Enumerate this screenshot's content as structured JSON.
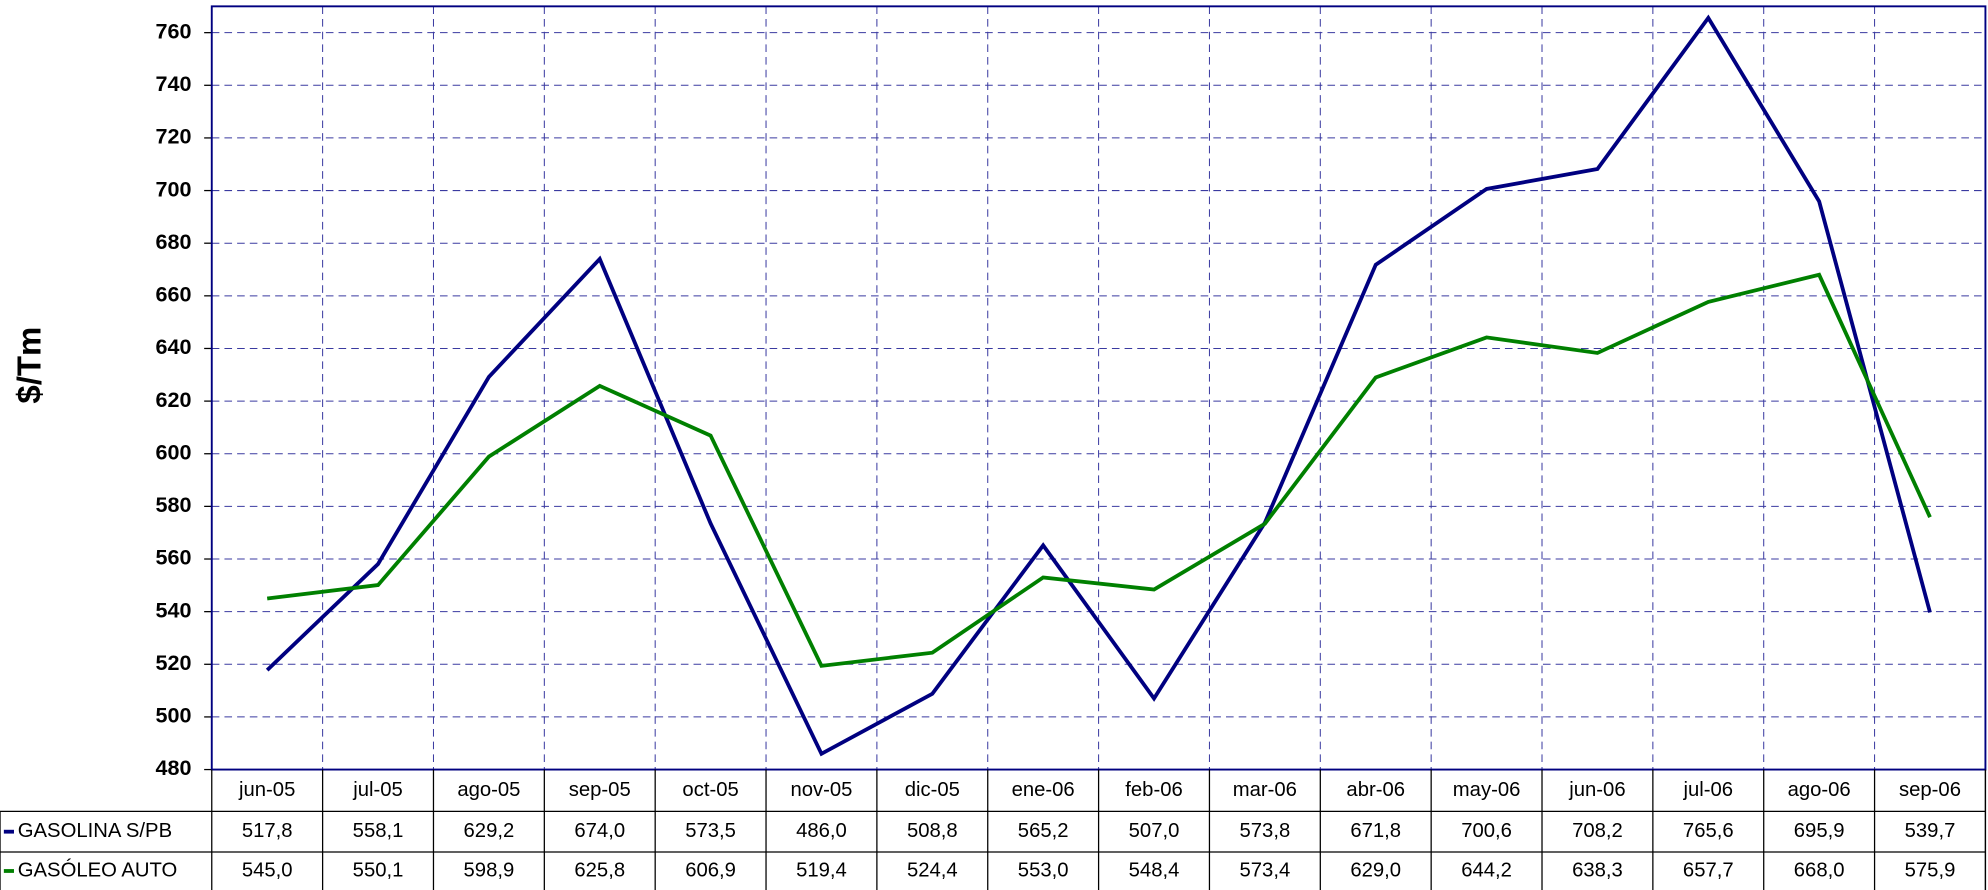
{
  "chart_data": {
    "type": "line",
    "y_label": "$/Tm",
    "categories": [
      "jun-05",
      "jul-05",
      "ago-05",
      "sep-05",
      "oct-05",
      "nov-05",
      "dic-05",
      "ene-06",
      "feb-06",
      "mar-06",
      "abr-06",
      "may-06",
      "jun-06",
      "jul-06",
      "ago-06",
      "sep-06"
    ],
    "series": [
      {
        "name": "GASOLINA S/PB",
        "color": "#000080",
        "values": [
          517.8,
          558.1,
          629.2,
          674.0,
          573.5,
          486.0,
          508.8,
          565.2,
          507.0,
          573.8,
          671.8,
          700.6,
          708.2,
          765.6,
          695.9,
          539.7
        ],
        "value_labels": [
          "517,8",
          "558,1",
          "629,2",
          "674,0",
          "573,5",
          "486,0",
          "508,8",
          "565,2",
          "507,0",
          "573,8",
          "671,8",
          "700,6",
          "708,2",
          "765,6",
          "695,9",
          "539,7"
        ]
      },
      {
        "name": "GASÓLEO AUTO",
        "color": "#008000",
        "values": [
          545.0,
          550.1,
          598.9,
          625.8,
          606.9,
          519.4,
          524.4,
          553.0,
          548.4,
          573.4,
          629.0,
          644.2,
          638.3,
          657.7,
          668.0,
          575.9
        ],
        "value_labels": [
          "545,0",
          "550,1",
          "598,9",
          "625,8",
          "606,9",
          "519,4",
          "524,4",
          "553,0",
          "548,4",
          "573,4",
          "629,0",
          "644,2",
          "638,3",
          "657,7",
          "668,0",
          "575,9"
        ]
      }
    ],
    "ylim": [
      480,
      770
    ],
    "yticks": [
      480,
      500,
      520,
      540,
      560,
      580,
      600,
      620,
      640,
      660,
      680,
      700,
      720,
      740,
      760
    ],
    "grid": true
  }
}
